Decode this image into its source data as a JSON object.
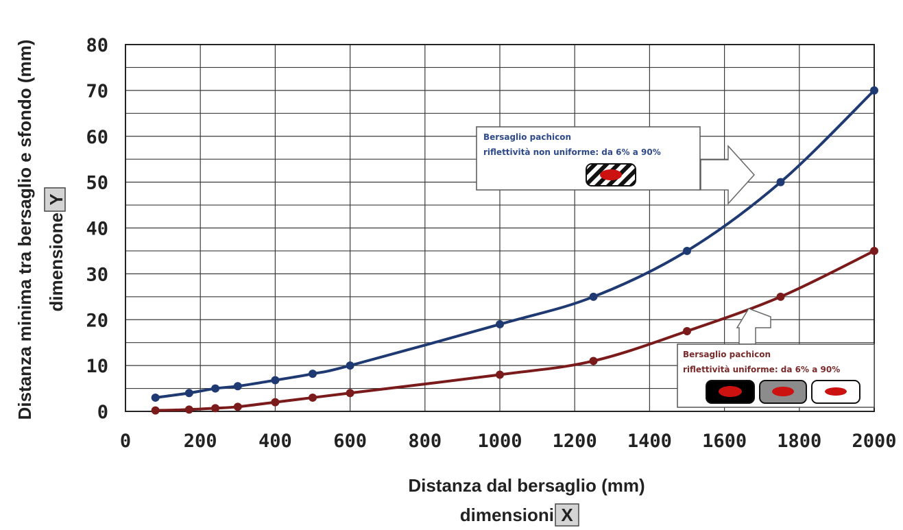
{
  "chart_data": {
    "type": "line",
    "x_axis": {
      "label": "Distanza dal bersaglio (mm)",
      "dimension_prefix": "dimensioni",
      "dimension_letter": "X",
      "ticks": [
        0,
        200,
        400,
        600,
        800,
        1000,
        1200,
        1400,
        1600,
        1800,
        2000
      ],
      "range": [
        0,
        2000
      ]
    },
    "y_axis": {
      "label": "Distanza minima tra bersaglio e sfondo (mm)",
      "dimension_prefix": "dimensione",
      "dimension_letter": "Y",
      "ticks": [
        0,
        10,
        20,
        30,
        40,
        50,
        60,
        70,
        80
      ],
      "range": [
        0,
        80
      ]
    },
    "grid": {
      "x_step": 200,
      "y_step": 5
    },
    "series": [
      {
        "color": "#1f3a73",
        "points": [
          [
            80,
            3
          ],
          [
            170,
            4
          ],
          [
            240,
            5
          ],
          [
            300,
            5.5
          ],
          [
            400,
            6.8
          ],
          [
            500,
            8.2
          ],
          [
            600,
            10
          ],
          [
            1000,
            19
          ],
          [
            1250,
            25
          ],
          [
            1500,
            35
          ],
          [
            1750,
            50
          ],
          [
            2000,
            70
          ]
        ]
      },
      {
        "color": "#7a1a1a",
        "points": [
          [
            80,
            0.2
          ],
          [
            170,
            0.4
          ],
          [
            240,
            0.7
          ],
          [
            300,
            1
          ],
          [
            400,
            2
          ],
          [
            500,
            3
          ],
          [
            600,
            4
          ],
          [
            1000,
            8
          ],
          [
            1250,
            11
          ],
          [
            1500,
            17.5
          ],
          [
            1750,
            25
          ],
          [
            2000,
            35
          ]
        ]
      }
    ],
    "annotations": [
      {
        "line1": "Bersaglio pachicon",
        "line2": "riflettività non uniforme: da 6% a 90%",
        "text_color": "#2e4a8a",
        "icons": [
          "striped-target-icon"
        ]
      },
      {
        "line1": "Bersaglio pachicon",
        "line2": "riflettività uniforme: da 6% a 90%",
        "text_color": "#7a2a2a",
        "icons": [
          "black-target-icon",
          "gray-target-icon",
          "white-target-icon"
        ]
      }
    ]
  }
}
